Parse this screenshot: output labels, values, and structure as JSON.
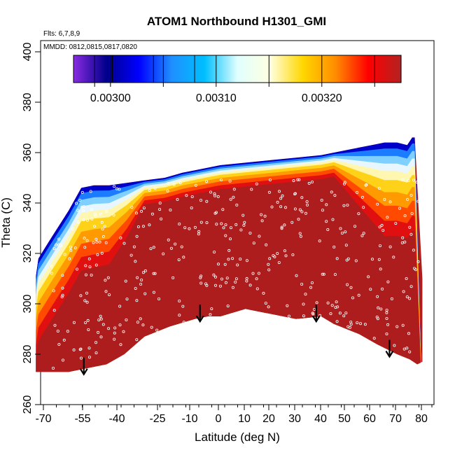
{
  "chart_data": {
    "type": "heatmap",
    "title": "ATOM1 Northbound H1301_GMI",
    "xlabel": "Latitude (deg N)",
    "ylabel": "Theta (C)",
    "annotations": [
      "Flts: 6,7,8,9",
      "MMDD: 0812,0815,0817,0820"
    ],
    "xlim": [
      -70,
      80
    ],
    "ylim": [
      260,
      400
    ],
    "x_major_ticks": [
      -70,
      -55,
      -40,
      -25,
      -10,
      0,
      10,
      20,
      30,
      40,
      50,
      60,
      70,
      80
    ],
    "x_tick_labels": [
      "-70",
      "-55",
      "-40",
      "-25",
      "-10",
      "0",
      "10",
      "20",
      "30",
      "40",
      "50",
      "60",
      "70",
      "80"
    ],
    "y_ticks": [
      260,
      280,
      300,
      320,
      340,
      360,
      380,
      400
    ],
    "y_tick_labels": [
      "260",
      "280",
      "300",
      "320",
      "340",
      "360",
      "380",
      "400"
    ],
    "colorbar": {
      "range": [
        0.002965,
        0.003275
      ],
      "ticks": [
        0.003,
        0.0031,
        0.0032
      ],
      "tick_labels": [
        "0.00300",
        "0.00310",
        "0.00320"
      ],
      "colors": [
        "#8a2be2",
        "#00008b",
        "#0000ff",
        "#1e90ff",
        "#00bfff",
        "#e0ffff",
        "#ffffe0",
        "#ffd700",
        "#ff8c00",
        "#ff0000",
        "#b22222"
      ]
    },
    "boundary": {
      "top_lat": [
        -73,
        -72,
        -67,
        -60,
        -55,
        -50,
        -44,
        -37,
        -30,
        -22,
        -15,
        -10,
        -5,
        0,
        10,
        20,
        30,
        40,
        45,
        50,
        55,
        60,
        65,
        70,
        74,
        76,
        77
      ],
      "top_theta": [
        311,
        318,
        326,
        337,
        346,
        347,
        347,
        348,
        349,
        350,
        352,
        353,
        354,
        355,
        356,
        357,
        358,
        359,
        360,
        361,
        362,
        363,
        364,
        364,
        363,
        366,
        366
      ],
      "bottom_lat": [
        80,
        78,
        75,
        70,
        62,
        55,
        45,
        40,
        30,
        20,
        10,
        0,
        -5,
        -10,
        -20,
        -30,
        -38,
        -45,
        -50,
        -55,
        -60,
        -65,
        -70,
        -73
      ],
      "bottom_theta": [
        277,
        276,
        278,
        280,
        284,
        288,
        292,
        295,
        294,
        296,
        298,
        295,
        295,
        294,
        291,
        287,
        280,
        276,
        275,
        274,
        273,
        273,
        273,
        273
      ],
      "side_lat": [
        77,
        80,
        80
      ],
      "side_theta": [
        366,
        310,
        277
      ]
    },
    "arrows": [
      {
        "lat": -54,
        "theta": 272
      },
      {
        "lat": -8,
        "theta": 293
      },
      {
        "lat": 38,
        "theta": 293
      },
      {
        "lat": 67,
        "theta": 279
      }
    ]
  }
}
